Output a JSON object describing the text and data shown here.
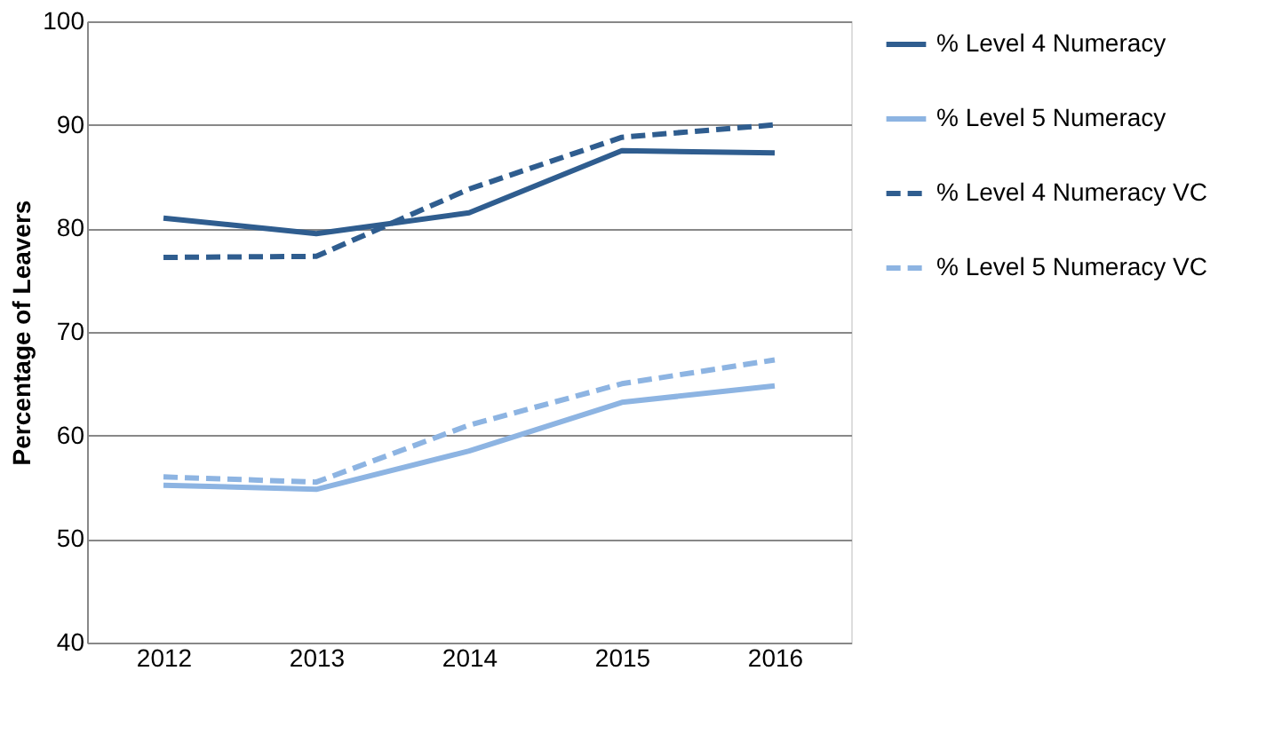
{
  "chart_data": {
    "type": "line",
    "ylabel": "Percentage of Leavers",
    "categories": [
      "2012",
      "2013",
      "2014",
      "2015",
      "2016"
    ],
    "ylim": [
      40,
      100
    ],
    "yticks": [
      40,
      50,
      60,
      70,
      80,
      90,
      100
    ],
    "grid": "y",
    "legend": "right",
    "marker": "none",
    "series": [
      {
        "name": "% Level 4 Numeracy",
        "color": "#2f5d8f",
        "line_style": "solid",
        "values": [
          81.0,
          79.5,
          81.5,
          87.5,
          87.3
        ]
      },
      {
        "name": "% Level 5 Numeracy",
        "color": "#8db4e2",
        "line_style": "solid",
        "values": [
          55.2,
          54.8,
          58.5,
          63.2,
          64.8
        ]
      },
      {
        "name": "% Level 4 Numeracy VC",
        "color": "#2f5d8f",
        "line_style": "dashed",
        "values": [
          77.2,
          77.3,
          83.8,
          88.8,
          90.0
        ]
      },
      {
        "name": "% Level 5 Numeracy VC",
        "color": "#8db4e2",
        "line_style": "dashed",
        "values": [
          56.0,
          55.5,
          61.0,
          65.0,
          67.3
        ]
      }
    ]
  }
}
